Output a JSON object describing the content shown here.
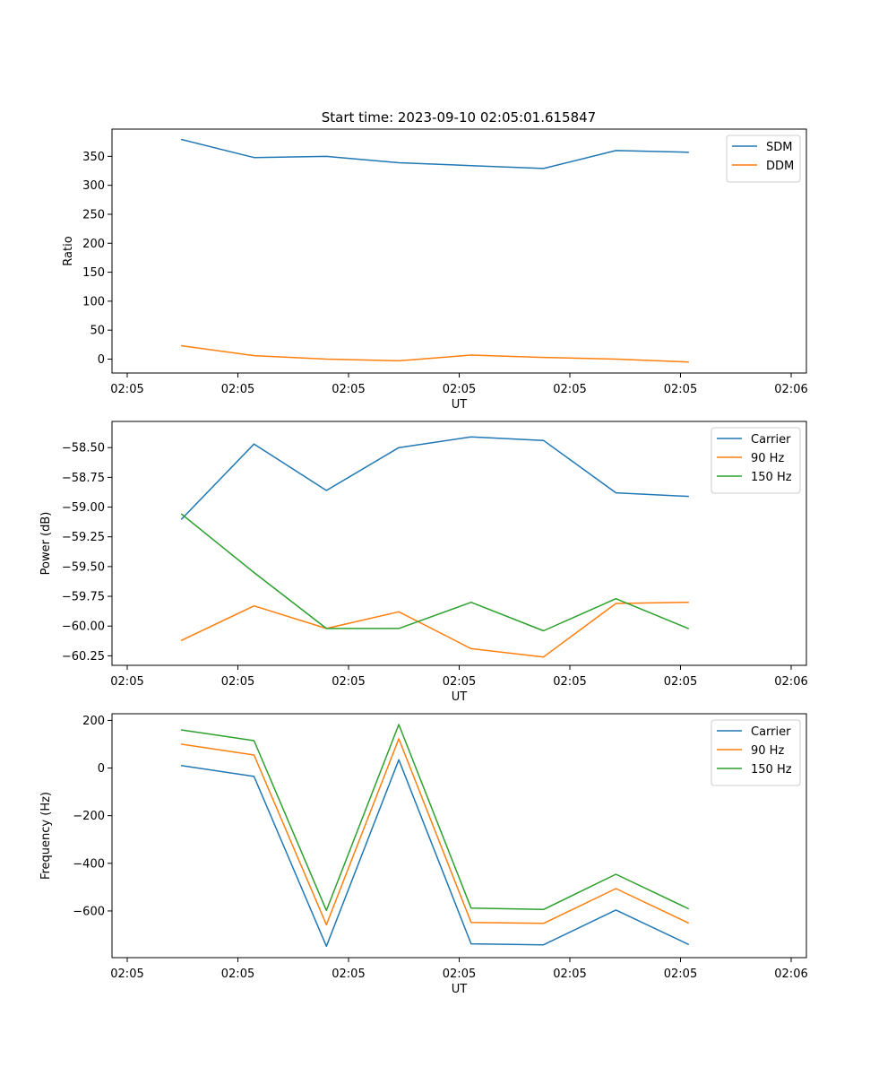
{
  "title": "Start time: 2023-09-10 02:05:01.615847",
  "colors": {
    "c0": "#1f77b4",
    "c1": "#ff7f0e",
    "c2": "#2ca02c",
    "axis": "#000000",
    "legend_border": "#cccccc"
  },
  "chart_data": [
    {
      "type": "line",
      "ylabel": "Ratio",
      "xlabel": "UT",
      "xlim": [
        0,
        10
      ],
      "x_ticks": [
        0,
        1.6667,
        3.3333,
        5,
        6.6667,
        8.3333,
        10
      ],
      "x_tick_labels": [
        "02:05",
        "02:05",
        "02:05",
        "02:05",
        "02:05",
        "02:05",
        "02:06"
      ],
      "ylim": [
        -24,
        397
      ],
      "y_ticks": [
        0,
        50,
        100,
        150,
        200,
        250,
        300,
        350
      ],
      "y_tick_labels": [
        "0",
        "50",
        "100",
        "150",
        "200",
        "250",
        "300",
        "350"
      ],
      "x": [
        0.82,
        1.91,
        3.0,
        4.09,
        5.18,
        6.27,
        7.36,
        8.45
      ],
      "series": [
        {
          "name": "SDM",
          "color_key": "c0",
          "values": [
            379,
            348,
            350,
            339,
            334,
            329,
            360,
            357
          ]
        },
        {
          "name": "DDM",
          "color_key": "c1",
          "values": [
            23,
            6,
            0,
            -3,
            7,
            3,
            0,
            -5
          ]
        }
      ],
      "legend": "upper right"
    },
    {
      "type": "line",
      "ylabel": "Power (dB)",
      "xlabel": "UT",
      "xlim": [
        0,
        10
      ],
      "x_ticks": [
        0,
        1.6667,
        3.3333,
        5,
        6.6667,
        8.3333,
        10
      ],
      "x_tick_labels": [
        "02:05",
        "02:05",
        "02:05",
        "02:05",
        "02:05",
        "02:05",
        "02:06"
      ],
      "ylim": [
        -60.33,
        -58.28
      ],
      "y_ticks": [
        -58.5,
        -58.75,
        -59.0,
        -59.25,
        -59.5,
        -59.75,
        -60.0,
        -60.25
      ],
      "y_tick_labels": [
        "−58.50",
        "−58.75",
        "−59.00",
        "−59.25",
        "−59.50",
        "−59.75",
        "−60.00",
        "−60.25"
      ],
      "x": [
        0.82,
        1.91,
        3.0,
        4.09,
        5.18,
        6.27,
        7.36,
        8.45
      ],
      "series": [
        {
          "name": "Carrier",
          "color_key": "c0",
          "values": [
            -59.1,
            -58.47,
            -58.86,
            -58.5,
            -58.41,
            -58.44,
            -58.88,
            -58.91
          ]
        },
        {
          "name": "90 Hz",
          "color_key": "c1",
          "values": [
            -60.12,
            -59.83,
            -60.02,
            -59.88,
            -60.19,
            -60.26,
            -59.81,
            -59.8
          ]
        },
        {
          "name": "150 Hz",
          "color_key": "c2",
          "values": [
            -59.06,
            -59.55,
            -60.02,
            -60.02,
            -59.8,
            -60.04,
            -59.77,
            -60.02
          ]
        }
      ],
      "legend": "upper right"
    },
    {
      "type": "line",
      "ylabel": "Frequency (Hz)",
      "xlabel": "UT",
      "xlim": [
        0,
        10
      ],
      "x_ticks": [
        0,
        1.6667,
        3.3333,
        5,
        6.6667,
        8.3333,
        10
      ],
      "x_tick_labels": [
        "02:05",
        "02:05",
        "02:05",
        "02:05",
        "02:05",
        "02:05",
        "02:06"
      ],
      "ylim": [
        -796,
        228
      ],
      "y_ticks": [
        200,
        0,
        -200,
        -400,
        -600
      ],
      "y_tick_labels": [
        "200",
        "0",
        "−200",
        "−400",
        "−600"
      ],
      "x": [
        0.82,
        1.91,
        3.0,
        4.09,
        5.18,
        6.27,
        7.36,
        8.45
      ],
      "series": [
        {
          "name": "Carrier",
          "color_key": "c0",
          "values": [
            10,
            -35,
            -748,
            35,
            -738,
            -742,
            -596,
            -740
          ]
        },
        {
          "name": "90 Hz",
          "color_key": "c1",
          "values": [
            100,
            55,
            -658,
            123,
            -648,
            -652,
            -506,
            -650
          ]
        },
        {
          "name": "150 Hz",
          "color_key": "c2",
          "values": [
            160,
            115,
            -598,
            183,
            -588,
            -594,
            -446,
            -590
          ]
        }
      ],
      "legend": "upper right"
    }
  ]
}
